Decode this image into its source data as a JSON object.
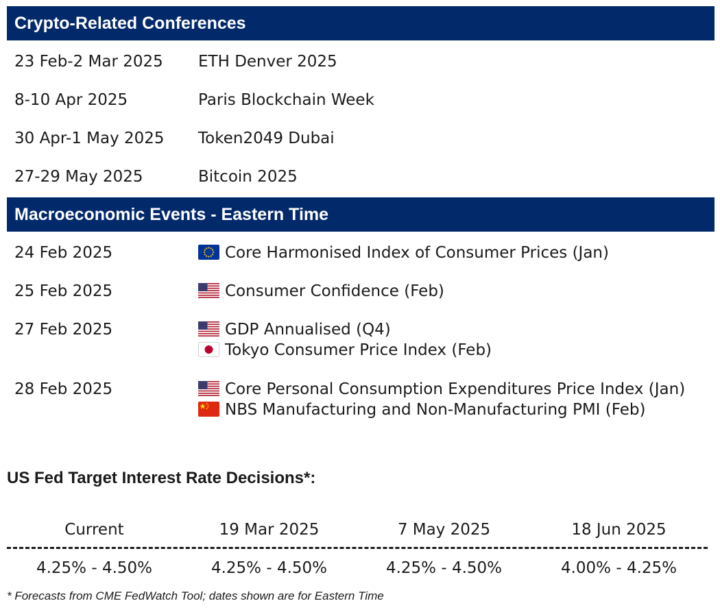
{
  "conferences": {
    "heading": "Crypto-Related Conferences",
    "items": [
      {
        "date": "23 Feb-2 Mar 2025",
        "name": "ETH Denver 2025"
      },
      {
        "date": "8-10 Apr 2025",
        "name": "Paris Blockchain Week"
      },
      {
        "date": "30 Apr-1 May 2025",
        "name": "Token2049 Dubai"
      },
      {
        "date": "27-29 May 2025",
        "name": "Bitcoin 2025"
      }
    ]
  },
  "macro": {
    "heading": "Macroeconomic Events - Eastern Time",
    "items": [
      {
        "date": "24 Feb 2025",
        "events": [
          {
            "flag": "eu-flag-icon",
            "text": "Core Harmonised Index of Consumer Prices (Jan)"
          }
        ]
      },
      {
        "date": "25 Feb 2025",
        "events": [
          {
            "flag": "us-flag-icon",
            "text": "Consumer Confidence (Feb)"
          }
        ]
      },
      {
        "date": "27 Feb 2025",
        "events": [
          {
            "flag": "us-flag-icon",
            "text": "GDP Annualised (Q4)"
          },
          {
            "flag": "jp-flag-icon",
            "text": "Tokyo Consumer Price Index (Feb)"
          }
        ]
      },
      {
        "date": "28 Feb 2025",
        "events": [
          {
            "flag": "us-flag-icon",
            "text": "Core Personal Consumption Expenditures Price Index (Jan)"
          },
          {
            "flag": "cn-flag-icon",
            "text": "NBS Manufacturing and Non-Manufacturing PMI (Feb)"
          }
        ]
      }
    ]
  },
  "rates": {
    "title": "US Fed Target Interest Rate Decisions*:",
    "columns": [
      {
        "label": "Current",
        "value": "4.25% - 4.50%"
      },
      {
        "label": "19 Mar 2025",
        "value": "4.25% - 4.50%"
      },
      {
        "label": "7 May 2025",
        "value": "4.25% - 4.50%"
      },
      {
        "label": "18 Jun 2025",
        "value": "4.00% - 4.25%"
      }
    ],
    "footnote": "* Forecasts from CME FedWatch Tool; dates shown are for Eastern Time"
  },
  "colors": {
    "header_band": "#022a6b",
    "header_text": "#ffffff",
    "body_text": "#1a1a1a"
  }
}
